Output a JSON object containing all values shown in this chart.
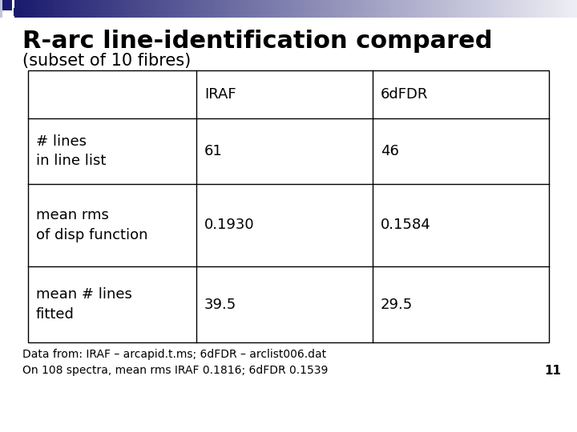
{
  "title_line1": "R-arc line-identification compared",
  "title_line2": "(subset of 10 fibres)",
  "col_headers": [
    "",
    "IRAF",
    "6dFDR"
  ],
  "row_labels": [
    "# lines\nin line list",
    "mean rms\nof disp function",
    "mean # lines\nfitted"
  ],
  "iraf_values": [
    "61",
    "0.1930",
    "39.5"
  ],
  "fdr_values": [
    "46",
    "0.1584",
    "29.5"
  ],
  "footer1": "Data from: IRAF – arcapid.t.ms; 6dFDR – arclist006.dat",
  "footer2": "On 108 spectra, mean rms IRAF 0.1816; 6dFDR 0.1539",
  "page_number": "11",
  "bg_color": "#ffffff",
  "title_color": "#000000",
  "table_line_color": "#000000",
  "font_color": "#000000",
  "title_fontsize": 22,
  "subtitle_fontsize": 15,
  "table_fontsize": 13,
  "footer_fontsize": 10,
  "page_fontsize": 11
}
